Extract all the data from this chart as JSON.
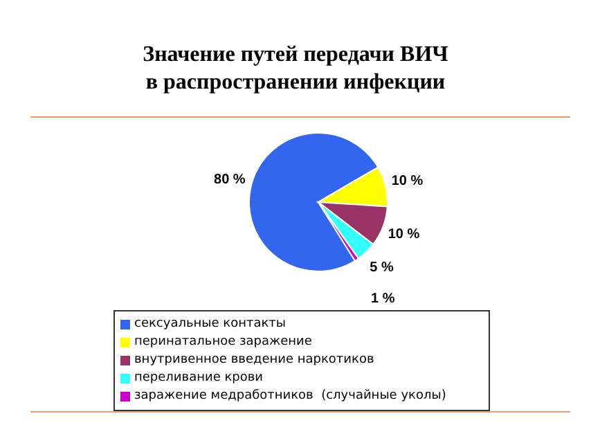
{
  "chart_data": {
    "type": "pie",
    "title": "Значение путей передачи ВИЧ\nв распространении инфекции",
    "categories": [
      "сексуальные контакты",
      "перинатальное заражение",
      "внутривенное введение наркотиков",
      "переливание крови",
      "заражение медработников  (случайные уколы)"
    ],
    "values": [
      80,
      10,
      10,
      5,
      1
    ],
    "value_labels": [
      "80 %",
      "10 %",
      "10 %",
      "5 %",
      "1 %"
    ],
    "colors": [
      "#3366ee",
      "#ffff00",
      "#993366",
      "#33ffff",
      "#cc00cc"
    ],
    "legend": "bottom"
  }
}
